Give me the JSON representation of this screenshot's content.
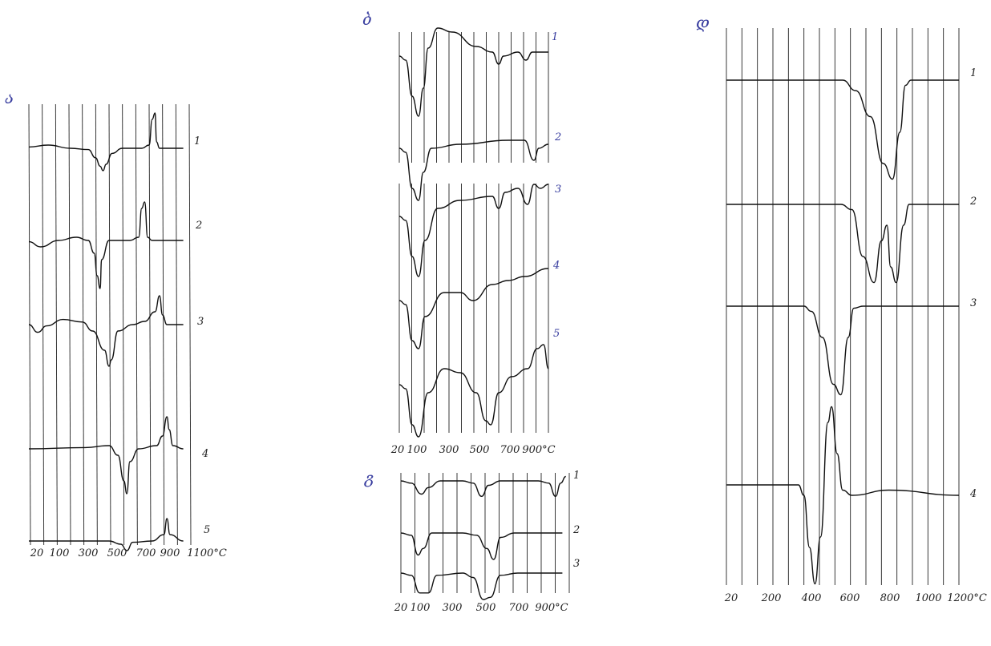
{
  "panels": [
    {
      "id": "a",
      "letter": "ა",
      "tick_labels": [
        "20",
        "100",
        "300",
        "500",
        "700",
        "900",
        "1100°C"
      ],
      "tick_values": [
        20,
        100,
        300,
        500,
        700,
        900,
        1100
      ],
      "curve_labels": [
        "1",
        "2",
        "3",
        "4",
        "5"
      ],
      "curves": [
        {
          "name": "1",
          "points": [
            [
              20,
              0.02
            ],
            [
              150,
              0.05
            ],
            [
              300,
              0.0
            ],
            [
              420,
              -0.02
            ],
            [
              470,
              -0.15
            ],
            [
              500,
              -0.28
            ],
            [
              520,
              -0.35
            ],
            [
              540,
              -0.25
            ],
            [
              580,
              -0.08
            ],
            [
              650,
              0.0
            ],
            [
              780,
              0.0
            ],
            [
              830,
              0.05
            ],
            [
              850,
              0.45
            ],
            [
              870,
              0.55
            ],
            [
              880,
              0.1
            ],
            [
              900,
              0.0
            ],
            [
              1060,
              0.0
            ]
          ]
        },
        {
          "name": "2",
          "points": [
            [
              20,
              -0.02
            ],
            [
              100,
              -0.1
            ],
            [
              220,
              0.0
            ],
            [
              340,
              0.05
            ],
            [
              420,
              0.0
            ],
            [
              460,
              -0.2
            ],
            [
              480,
              -0.55
            ],
            [
              500,
              -0.75
            ],
            [
              510,
              -0.3
            ],
            [
              560,
              0.0
            ],
            [
              700,
              0.0
            ],
            [
              760,
              0.05
            ],
            [
              780,
              0.5
            ],
            [
              800,
              0.6
            ],
            [
              820,
              0.05
            ],
            [
              850,
              0.0
            ],
            [
              1060,
              0.0
            ]
          ]
        },
        {
          "name": "3",
          "points": [
            [
              20,
              0.0
            ],
            [
              80,
              -0.12
            ],
            [
              140,
              -0.02
            ],
            [
              250,
              0.08
            ],
            [
              380,
              0.04
            ],
            [
              450,
              -0.1
            ],
            [
              530,
              -0.4
            ],
            [
              560,
              -0.65
            ],
            [
              575,
              -0.55
            ],
            [
              620,
              -0.1
            ],
            [
              720,
              0.0
            ],
            [
              800,
              0.05
            ],
            [
              870,
              0.2
            ],
            [
              900,
              0.45
            ],
            [
              920,
              0.15
            ],
            [
              950,
              0.0
            ],
            [
              1060,
              0.0
            ]
          ]
        },
        {
          "name": "4",
          "points": [
            [
              20,
              0.0
            ],
            [
              400,
              0.02
            ],
            [
              560,
              0.05
            ],
            [
              620,
              -0.1
            ],
            [
              660,
              -0.5
            ],
            [
              680,
              -0.7
            ],
            [
              700,
              -0.2
            ],
            [
              760,
              0.0
            ],
            [
              880,
              0.05
            ],
            [
              920,
              0.2
            ],
            [
              950,
              0.5
            ],
            [
              965,
              0.3
            ],
            [
              990,
              0.05
            ],
            [
              1060,
              0.0
            ]
          ]
        },
        {
          "name": "5",
          "points": [
            [
              20,
              0.0
            ],
            [
              420,
              0.0
            ],
            [
              560,
              0.0
            ],
            [
              640,
              -0.05
            ],
            [
              680,
              -0.15
            ],
            [
              720,
              -0.02
            ],
            [
              850,
              0.0
            ],
            [
              930,
              0.1
            ],
            [
              950,
              0.35
            ],
            [
              970,
              0.1
            ],
            [
              1060,
              0.0
            ]
          ]
        }
      ]
    },
    {
      "id": "b",
      "letter": "ბ",
      "tick_labels": [
        "20",
        "100",
        "300",
        "500",
        "700",
        "900°C"
      ],
      "tick_values": [
        20,
        100,
        300,
        500,
        700,
        900
      ],
      "curve_labels": [
        "1",
        "2",
        "3",
        "4",
        "5"
      ],
      "curves": [
        {
          "name": "1",
          "points": [
            [
              20,
              0.0
            ],
            [
              60,
              -0.05
            ],
            [
              100,
              -0.5
            ],
            [
              140,
              -0.75
            ],
            [
              170,
              -0.4
            ],
            [
              200,
              0.1
            ],
            [
              260,
              0.35
            ],
            [
              350,
              0.3
            ],
            [
              500,
              0.12
            ],
            [
              600,
              0.05
            ],
            [
              640,
              -0.1
            ],
            [
              670,
              0.0
            ],
            [
              760,
              0.05
            ],
            [
              810,
              -0.05
            ],
            [
              850,
              0.05
            ],
            [
              950,
              0.05
            ]
          ]
        },
        {
          "name": "2",
          "points": [
            [
              20,
              0.0
            ],
            [
              60,
              -0.05
            ],
            [
              100,
              -0.5
            ],
            [
              140,
              -0.65
            ],
            [
              170,
              -0.3
            ],
            [
              220,
              0.0
            ],
            [
              400,
              0.05
            ],
            [
              700,
              0.1
            ],
            [
              800,
              0.1
            ],
            [
              860,
              -0.15
            ],
            [
              890,
              0.0
            ],
            [
              950,
              0.05
            ]
          ]
        },
        {
          "name": "3",
          "points": [
            [
              20,
              0.0
            ],
            [
              60,
              -0.05
            ],
            [
              100,
              -0.5
            ],
            [
              140,
              -0.75
            ],
            [
              180,
              -0.3
            ],
            [
              260,
              0.1
            ],
            [
              400,
              0.2
            ],
            [
              600,
              0.25
            ],
            [
              640,
              0.1
            ],
            [
              680,
              0.3
            ],
            [
              760,
              0.35
            ],
            [
              820,
              0.15
            ],
            [
              860,
              0.4
            ],
            [
              900,
              0.35
            ],
            [
              950,
              0.4
            ]
          ]
        },
        {
          "name": "4",
          "points": [
            [
              20,
              0.0
            ],
            [
              60,
              -0.05
            ],
            [
              100,
              -0.5
            ],
            [
              140,
              -0.6
            ],
            [
              180,
              -0.2
            ],
            [
              300,
              0.1
            ],
            [
              400,
              0.1
            ],
            [
              480,
              0.0
            ],
            [
              600,
              0.2
            ],
            [
              700,
              0.25
            ],
            [
              800,
              0.3
            ],
            [
              950,
              0.4
            ]
          ]
        },
        {
          "name": "5",
          "points": [
            [
              20,
              0.0
            ],
            [
              60,
              -0.05
            ],
            [
              100,
              -0.5
            ],
            [
              140,
              -0.65
            ],
            [
              200,
              -0.1
            ],
            [
              300,
              0.2
            ],
            [
              400,
              0.15
            ],
            [
              500,
              -0.1
            ],
            [
              560,
              -0.45
            ],
            [
              590,
              -0.5
            ],
            [
              640,
              -0.1
            ],
            [
              720,
              0.1
            ],
            [
              820,
              0.2
            ],
            [
              880,
              0.45
            ],
            [
              920,
              0.5
            ],
            [
              950,
              0.2
            ]
          ]
        }
      ]
    },
    {
      "id": "c",
      "letter": "გ",
      "tick_labels": [
        "20",
        "100",
        "300",
        "500",
        "700",
        "900°C"
      ],
      "tick_values": [
        20,
        100,
        300,
        500,
        700,
        900
      ],
      "curve_labels": [
        "1",
        "2",
        "3"
      ],
      "curves": [
        {
          "name": "1",
          "points": [
            [
              20,
              0.0
            ],
            [
              80,
              -0.05
            ],
            [
              140,
              -0.3
            ],
            [
              180,
              -0.15
            ],
            [
              250,
              0.0
            ],
            [
              380,
              0.0
            ],
            [
              440,
              -0.05
            ],
            [
              490,
              -0.35
            ],
            [
              530,
              -0.1
            ],
            [
              600,
              0.0
            ],
            [
              820,
              0.0
            ],
            [
              880,
              -0.05
            ],
            [
              920,
              -0.35
            ],
            [
              950,
              -0.05
            ],
            [
              980,
              0.1
            ]
          ]
        },
        {
          "name": "2",
          "points": [
            [
              20,
              0.0
            ],
            [
              80,
              -0.05
            ],
            [
              120,
              -0.5
            ],
            [
              150,
              -0.35
            ],
            [
              200,
              0.0
            ],
            [
              380,
              0.0
            ],
            [
              460,
              -0.05
            ],
            [
              520,
              -0.35
            ],
            [
              560,
              -0.6
            ],
            [
              600,
              -0.1
            ],
            [
              680,
              0.0
            ],
            [
              960,
              0.0
            ]
          ]
        },
        {
          "name": "3",
          "points": [
            [
              20,
              0.0
            ],
            [
              80,
              -0.05
            ],
            [
              130,
              -0.45
            ],
            [
              180,
              -0.45
            ],
            [
              230,
              -0.05
            ],
            [
              380,
              0.0
            ],
            [
              440,
              -0.1
            ],
            [
              500,
              -0.6
            ],
            [
              540,
              -0.55
            ],
            [
              600,
              -0.05
            ],
            [
              700,
              0.0
            ],
            [
              960,
              0.0
            ]
          ]
        }
      ]
    },
    {
      "id": "d",
      "letter": "დ",
      "tick_labels": [
        "20",
        "200",
        "400",
        "600",
        "800",
        "1000",
        "1200°C"
      ],
      "tick_values": [
        20,
        200,
        400,
        600,
        800,
        1000,
        1200
      ],
      "curve_labels": [
        "1",
        "2",
        "3",
        "4"
      ],
      "curves": [
        {
          "name": "1",
          "points": [
            [
              20,
              0.0
            ],
            [
              650,
              0.0
            ],
            [
              720,
              -0.1
            ],
            [
              800,
              -0.35
            ],
            [
              870,
              -0.8
            ],
            [
              920,
              -0.95
            ],
            [
              960,
              -0.5
            ],
            [
              990,
              -0.05
            ],
            [
              1020,
              0.0
            ],
            [
              1280,
              0.0
            ]
          ]
        },
        {
          "name": "2",
          "points": [
            [
              20,
              0.0
            ],
            [
              640,
              0.0
            ],
            [
              700,
              -0.05
            ],
            [
              760,
              -0.5
            ],
            [
              820,
              -0.75
            ],
            [
              860,
              -0.35
            ],
            [
              890,
              -0.2
            ],
            [
              910,
              -0.6
            ],
            [
              940,
              -0.75
            ],
            [
              980,
              -0.2
            ],
            [
              1010,
              0.0
            ],
            [
              1280,
              0.0
            ]
          ]
        },
        {
          "name": "3",
          "points": [
            [
              20,
              0.0
            ],
            [
              440,
              0.0
            ],
            [
              480,
              -0.05
            ],
            [
              540,
              -0.3
            ],
            [
              600,
              -0.75
            ],
            [
              640,
              -0.85
            ],
            [
              680,
              -0.3
            ],
            [
              710,
              -0.02
            ],
            [
              760,
              0.0
            ],
            [
              1280,
              0.0
            ]
          ]
        },
        {
          "name": "4",
          "points": [
            [
              20,
              0.0
            ],
            [
              410,
              0.0
            ],
            [
              440,
              -0.1
            ],
            [
              470,
              -0.6
            ],
            [
              500,
              -0.95
            ],
            [
              530,
              -0.5
            ],
            [
              570,
              0.6
            ],
            [
              590,
              0.75
            ],
            [
              620,
              0.3
            ],
            [
              650,
              -0.05
            ],
            [
              700,
              -0.1
            ],
            [
              900,
              -0.05
            ],
            [
              1280,
              -0.1
            ]
          ]
        }
      ]
    }
  ]
}
